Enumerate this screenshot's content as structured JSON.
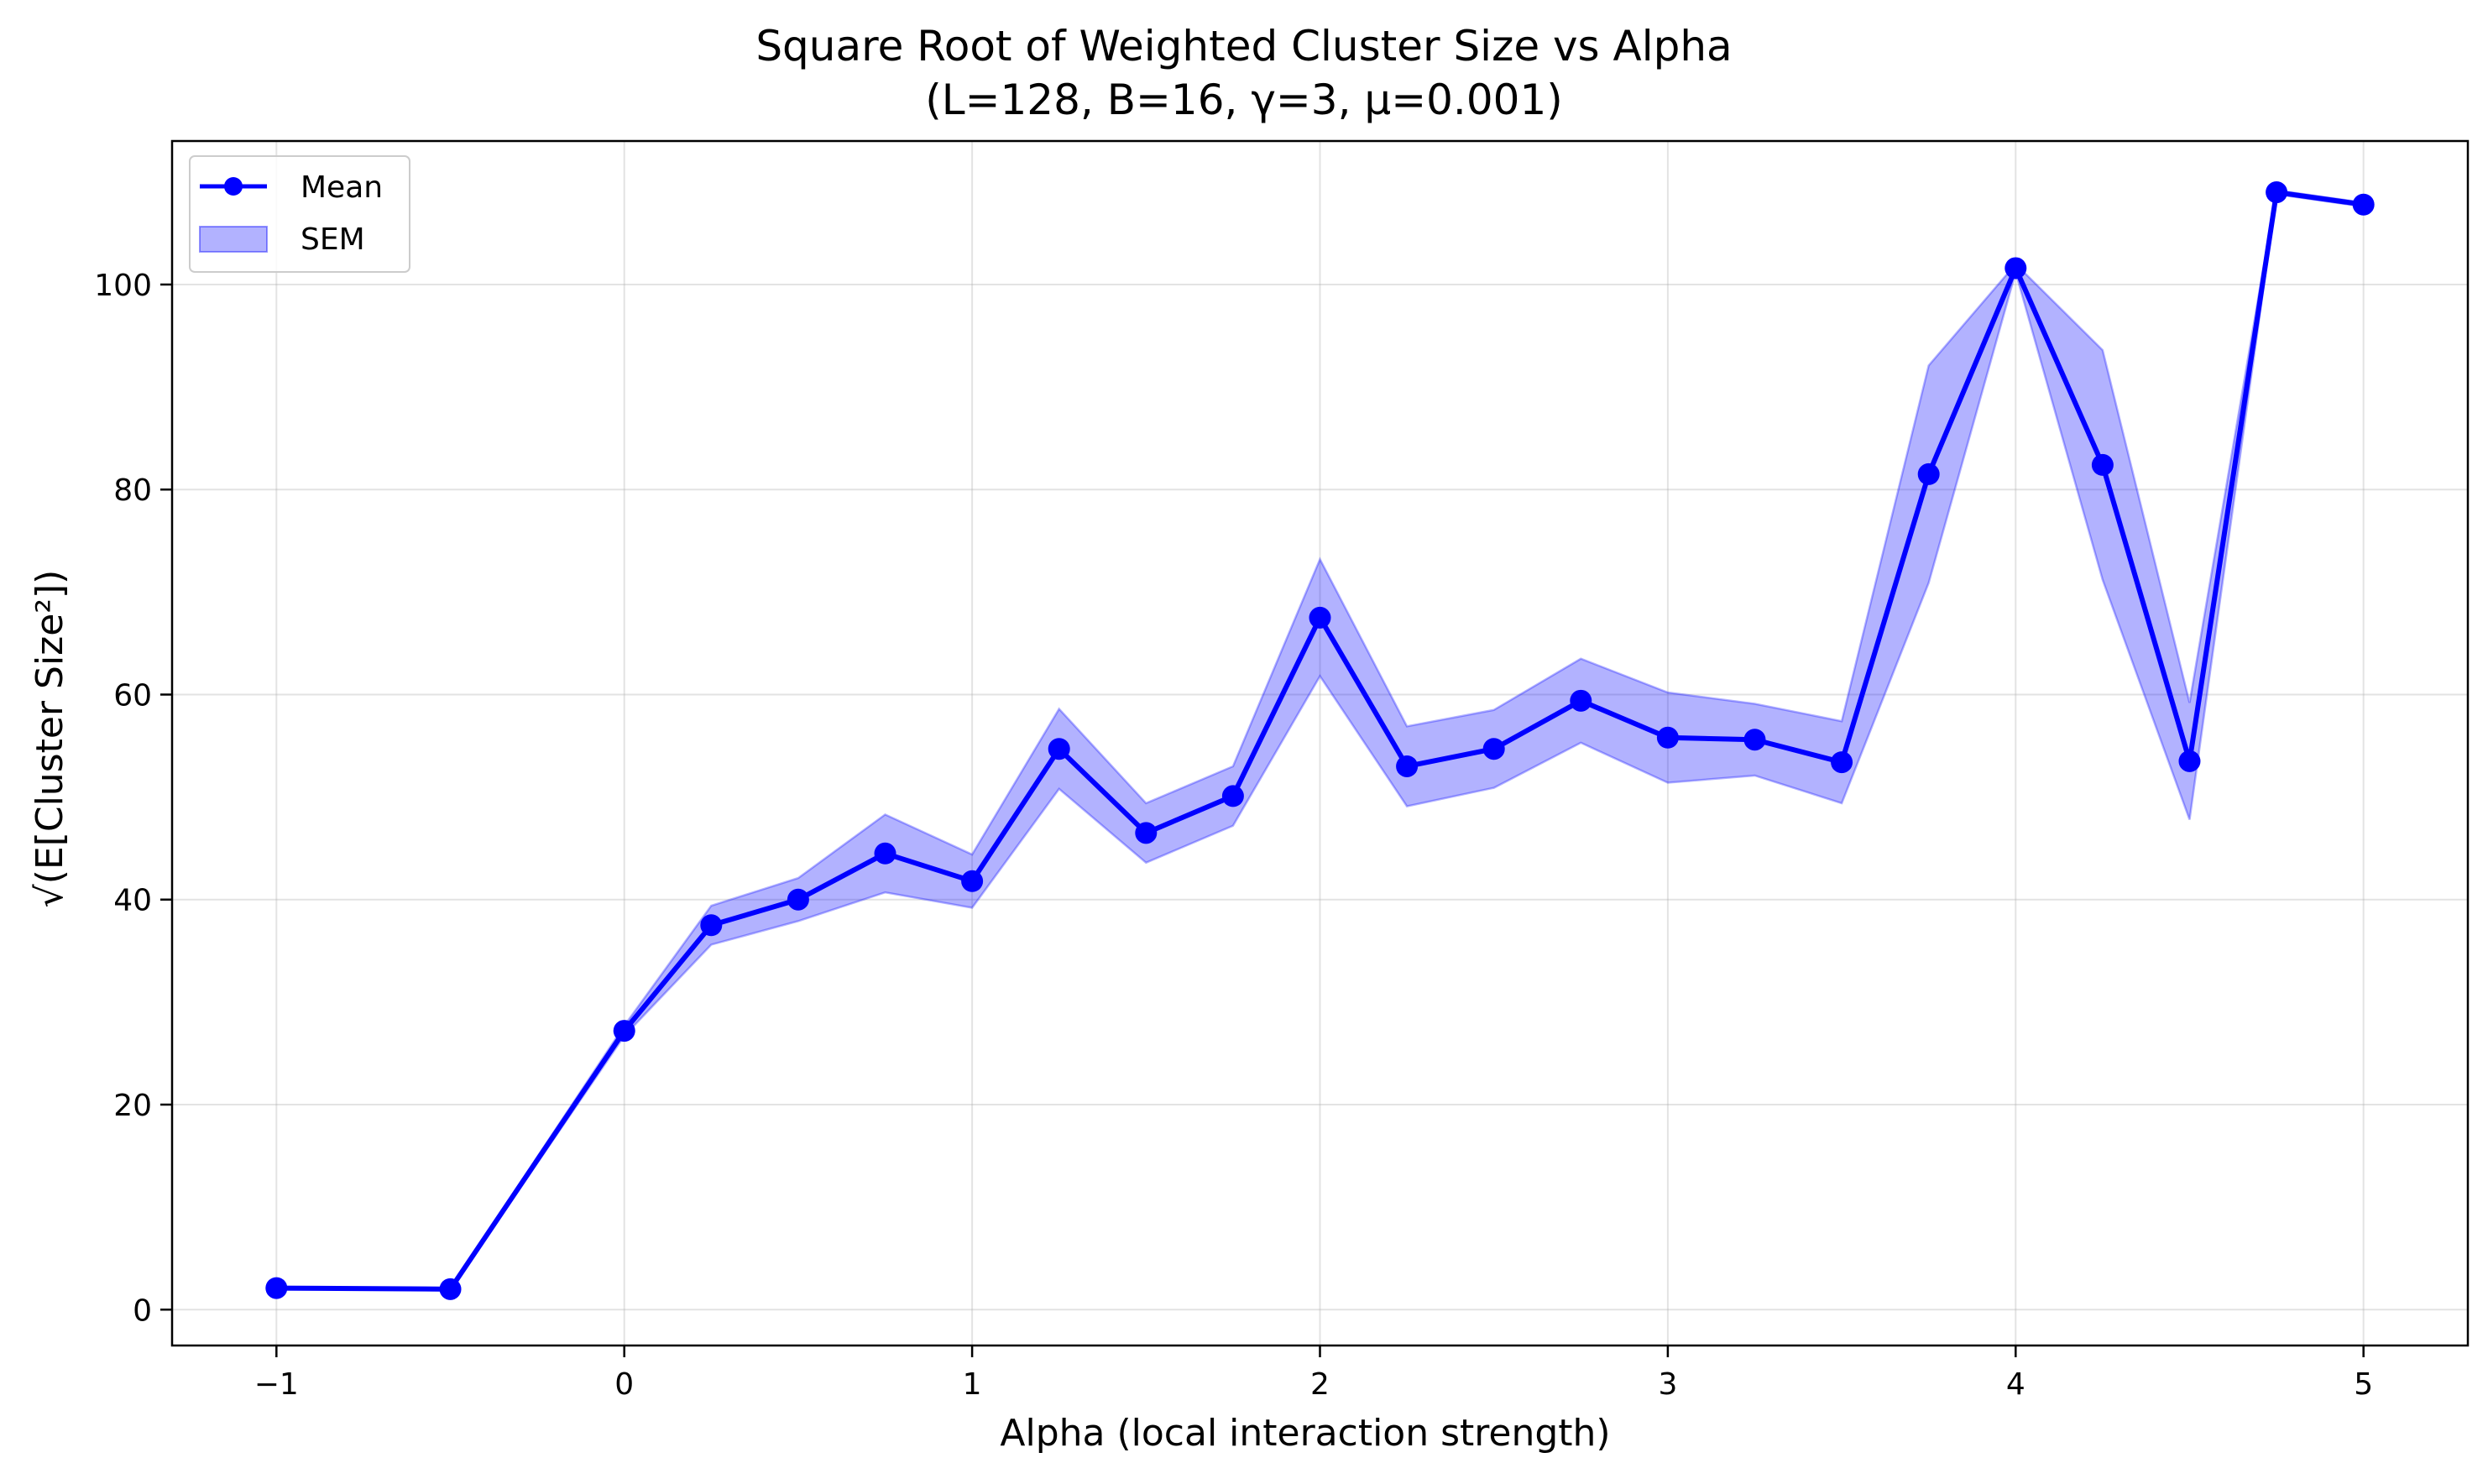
{
  "chart_data": {
    "type": "line",
    "title": "Square Root of Weighted Cluster Size vs Alpha",
    "subtitle": "(L=128, B=16, γ=3, μ=0.001)",
    "xlabel": "Alpha (local interaction strength)",
    "ylabel": "√(E[Cluster Size²])",
    "xlim": [
      -1.3,
      5.3
    ],
    "ylim": [
      -3.5,
      114
    ],
    "xticks": [
      -1,
      0,
      1,
      2,
      3,
      4,
      5
    ],
    "xtick_labels": [
      "−1",
      "0",
      "1",
      "2",
      "3",
      "4",
      "5"
    ],
    "yticks": [
      0,
      20,
      40,
      60,
      80,
      100
    ],
    "ytick_labels": [
      "0",
      "20",
      "40",
      "60",
      "80",
      "100"
    ],
    "grid": true,
    "legend_position": "top-left",
    "series": [
      {
        "name": "Mean",
        "color": "#0000ff",
        "marker": "circle",
        "x": [
          -1,
          -0.5,
          0,
          0.25,
          0.5,
          0.75,
          1,
          1.25,
          1.5,
          1.75,
          2,
          2.25,
          2.5,
          2.75,
          3,
          3.25,
          3.5,
          3.75,
          4,
          4.25,
          4.5,
          4.75,
          5
        ],
        "y": [
          2.1,
          2.0,
          27.2,
          37.5,
          40.0,
          44.5,
          41.8,
          54.7,
          46.5,
          50.1,
          67.5,
          53.0,
          54.7,
          59.4,
          55.8,
          55.6,
          53.4,
          81.5,
          101.6,
          82.4,
          53.5,
          109.0,
          107.8
        ]
      },
      {
        "name": "SEM",
        "type": "band",
        "color": "#0000ff",
        "x": [
          -1,
          -0.5,
          0,
          0.25,
          0.5,
          0.75,
          1,
          1.25,
          1.5,
          1.75,
          2,
          2.25,
          2.5,
          2.75,
          3,
          3.25,
          3.5,
          3.75,
          4,
          4.25,
          4.5,
          4.75,
          5
        ],
        "lower": [
          2.0,
          1.9,
          26.7,
          35.6,
          37.9,
          40.7,
          39.2,
          50.8,
          43.6,
          47.2,
          61.8,
          49.1,
          50.9,
          55.3,
          51.4,
          52.1,
          49.4,
          70.9,
          101.2,
          71.2,
          47.8,
          108.8,
          107.6
        ],
        "upper": [
          2.2,
          2.1,
          27.7,
          39.4,
          42.1,
          48.3,
          44.4,
          58.6,
          49.4,
          53.0,
          73.2,
          56.9,
          58.5,
          63.5,
          60.2,
          59.1,
          57.4,
          92.1,
          102.0,
          93.6,
          59.2,
          109.2,
          108.0
        ]
      }
    ],
    "legend": [
      {
        "label": "Mean",
        "kind": "line-marker"
      },
      {
        "label": "SEM",
        "kind": "patch"
      }
    ]
  }
}
